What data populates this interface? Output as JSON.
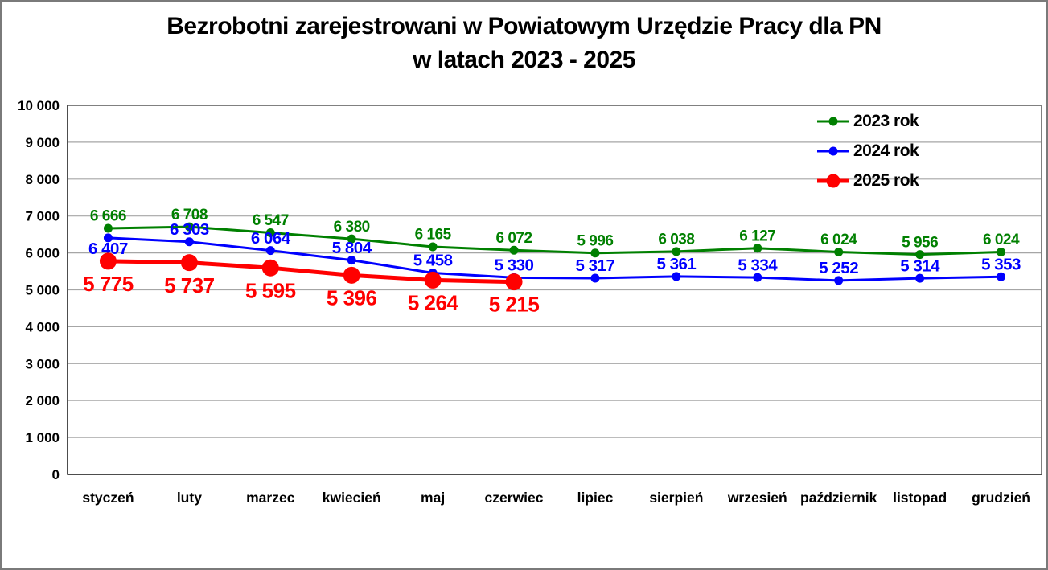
{
  "title": {
    "line1": "Bezrobotni zarejestrowani w Powiatowym Urzędzie Pracy dla PN",
    "line2": "w latach 2023 - 2025"
  },
  "chart_data": {
    "type": "line",
    "title": "Bezrobotni zarejestrowani w Powiatowym Urzędzie Pracy dla PN w latach 2023 - 2025",
    "categories": [
      "styczeń",
      "luty",
      "marzec",
      "kwiecień",
      "maj",
      "czerwiec",
      "lipiec",
      "sierpień",
      "wrzesień",
      "październik",
      "listopad",
      "grudzień"
    ],
    "series": [
      {
        "name": "2023 rok",
        "color": "#008000",
        "values": [
          6666,
          6708,
          6547,
          6380,
          6165,
          6072,
          5996,
          6038,
          6127,
          6024,
          5956,
          6024
        ],
        "label_position": "above",
        "marker": "circle-small"
      },
      {
        "name": "2024 rok",
        "color": "#0000ff",
        "values": [
          6407,
          6303,
          6064,
          5804,
          5458,
          5330,
          5317,
          5361,
          5334,
          5252,
          5314,
          5353
        ],
        "label_position": "above",
        "label_position_overrides": {
          "0": "below"
        },
        "marker": "circle-small"
      },
      {
        "name": "2025 rok",
        "color": "#ff0000",
        "values": [
          5775,
          5737,
          5595,
          5396,
          5264,
          5215
        ],
        "label_position": "below",
        "marker": "circle-large"
      }
    ],
    "ylim": [
      0,
      10000
    ],
    "ytick_step": 1000,
    "ytick_labels": [
      "0",
      "1 000",
      "2 000",
      "3 000",
      "4 000",
      "5 000",
      "6 000",
      "7 000",
      "8 000",
      "9 000",
      "10 000"
    ],
    "grid": true,
    "gridline_color": "#a6a6a6",
    "plot_border_color": "#808080",
    "legend_position": "top-right",
    "data_labels_visible": true
  }
}
